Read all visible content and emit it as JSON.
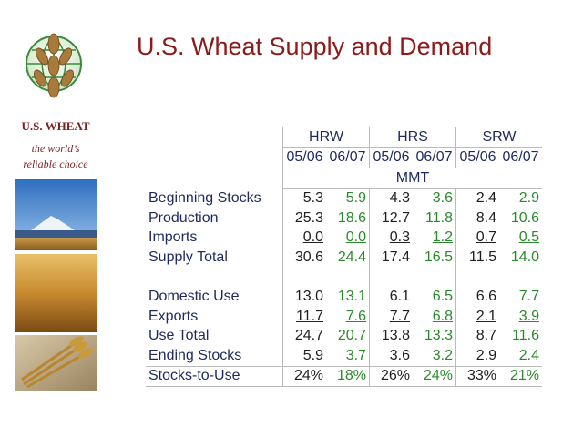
{
  "brand": {
    "name": "U.S. WHEAT",
    "tagline": [
      "the world’s",
      "reliable choice"
    ]
  },
  "title": "U.S. Wheat Supply and Demand",
  "table": {
    "groups": [
      "HRW",
      "HRS",
      "SRW"
    ],
    "years": [
      "05/06",
      "06/07",
      "05/06",
      "06/07",
      "05/06",
      "06/07"
    ],
    "unit": "MMT",
    "rows": [
      {
        "label": "Beginning Stocks",
        "values": [
          "5.3",
          "5.9",
          "4.3",
          "3.6",
          "2.4",
          "2.9"
        ]
      },
      {
        "label": "Production",
        "values": [
          "25.3",
          "18.6",
          "12.7",
          "11.8",
          "8.4",
          "10.6"
        ]
      },
      {
        "label": "Imports",
        "values": [
          "0.0",
          "0.0",
          "0.3",
          "1.2",
          "0.7",
          "0.5"
        ],
        "underline": true
      },
      {
        "label": "Supply Total",
        "values": [
          "30.6",
          "24.4",
          "17.4",
          "16.5",
          "11.5",
          "14.0"
        ]
      },
      {
        "label": "Domestic Use",
        "values": [
          "13.0",
          "13.1",
          "6.1",
          "6.5",
          "6.6",
          "7.7"
        ]
      },
      {
        "label": "Exports",
        "values": [
          "11.7",
          "7.6",
          "7.7",
          "6.8",
          "2.1",
          "3.9"
        ],
        "underline": true
      },
      {
        "label": "Use Total",
        "values": [
          "24.7",
          "20.7",
          "13.8",
          "13.3",
          "8.7",
          "11.6"
        ]
      },
      {
        "label": "Ending Stocks",
        "values": [
          "5.9",
          "3.7",
          "3.6",
          "3.2",
          "2.9",
          "2.4"
        ]
      },
      {
        "label": "Stocks-to-Use",
        "values": [
          "24%",
          "18%",
          "26%",
          "24%",
          "33%",
          "21%"
        ]
      }
    ]
  }
}
